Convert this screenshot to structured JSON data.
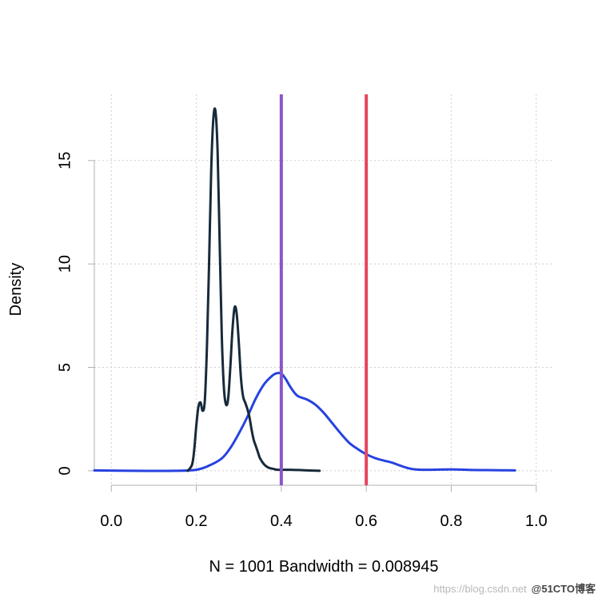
{
  "chart_data": {
    "type": "line",
    "title": "",
    "xlabel": "N = 1001   Bandwidth = 0.008945",
    "ylabel": "Density",
    "xlim": [
      -0.04,
      1.04
    ],
    "ylim": [
      -0.7,
      18.2
    ],
    "xticks": [
      0.0,
      0.2,
      0.4,
      0.6,
      0.8,
      1.0
    ],
    "xtick_labels": [
      "0.0",
      "0.2",
      "0.4",
      "0.6",
      "0.8",
      "1.0"
    ],
    "yticks": [
      0,
      5,
      10,
      15
    ],
    "ytick_labels": [
      "0",
      "5",
      "10",
      "15"
    ],
    "grid": true,
    "series": [
      {
        "color": "#172a3a",
        "x": [
          0.18,
          0.19,
          0.195,
          0.2,
          0.205,
          0.21,
          0.215,
          0.22,
          0.225,
          0.23,
          0.235,
          0.24,
          0.245,
          0.25,
          0.255,
          0.26,
          0.265,
          0.27,
          0.275,
          0.28,
          0.285,
          0.29,
          0.295,
          0.3,
          0.305,
          0.31,
          0.315,
          0.32,
          0.325,
          0.33,
          0.335,
          0.34,
          0.345,
          0.35,
          0.36,
          0.37,
          0.38,
          0.39,
          0.4,
          0.42,
          0.45,
          0.49
        ],
        "y": [
          0,
          0.3,
          1.0,
          2.2,
          3.1,
          3.3,
          2.9,
          3.4,
          6.0,
          10.0,
          14.5,
          17.0,
          17.4,
          15.5,
          11.0,
          6.5,
          4.0,
          3.2,
          3.5,
          5.0,
          6.8,
          7.9,
          7.6,
          6.2,
          4.5,
          3.6,
          3.3,
          3.0,
          2.6,
          2.0,
          1.5,
          1.2,
          0.9,
          0.6,
          0.3,
          0.15,
          0.1,
          0.05,
          0.05,
          0.05,
          0.03,
          0.0
        ]
      },
      {
        "color": "#2642e0",
        "x": [
          -0.04,
          0.05,
          0.15,
          0.2,
          0.23,
          0.26,
          0.28,
          0.3,
          0.32,
          0.34,
          0.36,
          0.38,
          0.39,
          0.4,
          0.41,
          0.42,
          0.43,
          0.44,
          0.46,
          0.48,
          0.5,
          0.52,
          0.54,
          0.56,
          0.58,
          0.6,
          0.62,
          0.64,
          0.66,
          0.68,
          0.7,
          0.72,
          0.75,
          0.8,
          0.85,
          0.9,
          0.95
        ],
        "y": [
          0.02,
          0.0,
          0.0,
          0.05,
          0.25,
          0.6,
          1.1,
          1.8,
          2.6,
          3.5,
          4.2,
          4.62,
          4.72,
          4.7,
          4.45,
          4.1,
          3.8,
          3.6,
          3.45,
          3.2,
          2.8,
          2.3,
          1.8,
          1.35,
          1.05,
          0.8,
          0.62,
          0.5,
          0.4,
          0.25,
          0.12,
          0.06,
          0.05,
          0.07,
          0.04,
          0.03,
          0.02
        ]
      }
    ],
    "vlines": [
      {
        "x": 0.4,
        "color": "#8a55c5"
      },
      {
        "x": 0.6,
        "color": "#e8455e"
      }
    ],
    "legend": "none"
  },
  "watermark": {
    "url": "https://blog.csdn.net",
    "brand": "@51CTO博客"
  }
}
